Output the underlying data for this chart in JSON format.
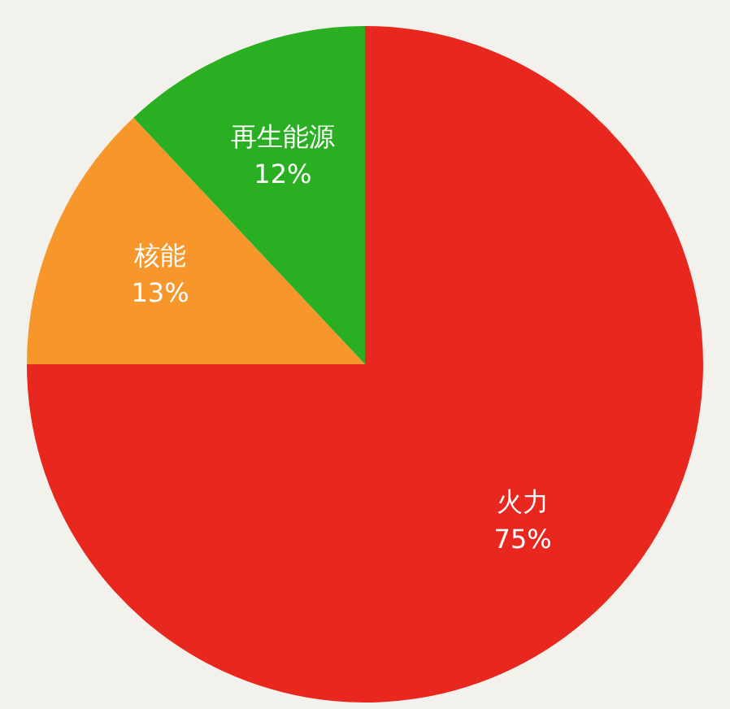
{
  "chart_data": {
    "type": "pie",
    "categories": [
      "火力",
      "核能",
      "再生能源"
    ],
    "values": [
      75,
      13,
      12
    ],
    "colors": [
      "#e8281f",
      "#f7962a",
      "#2aae22"
    ],
    "value_labels": [
      "75%",
      "13%",
      "12%"
    ],
    "legend": false
  }
}
